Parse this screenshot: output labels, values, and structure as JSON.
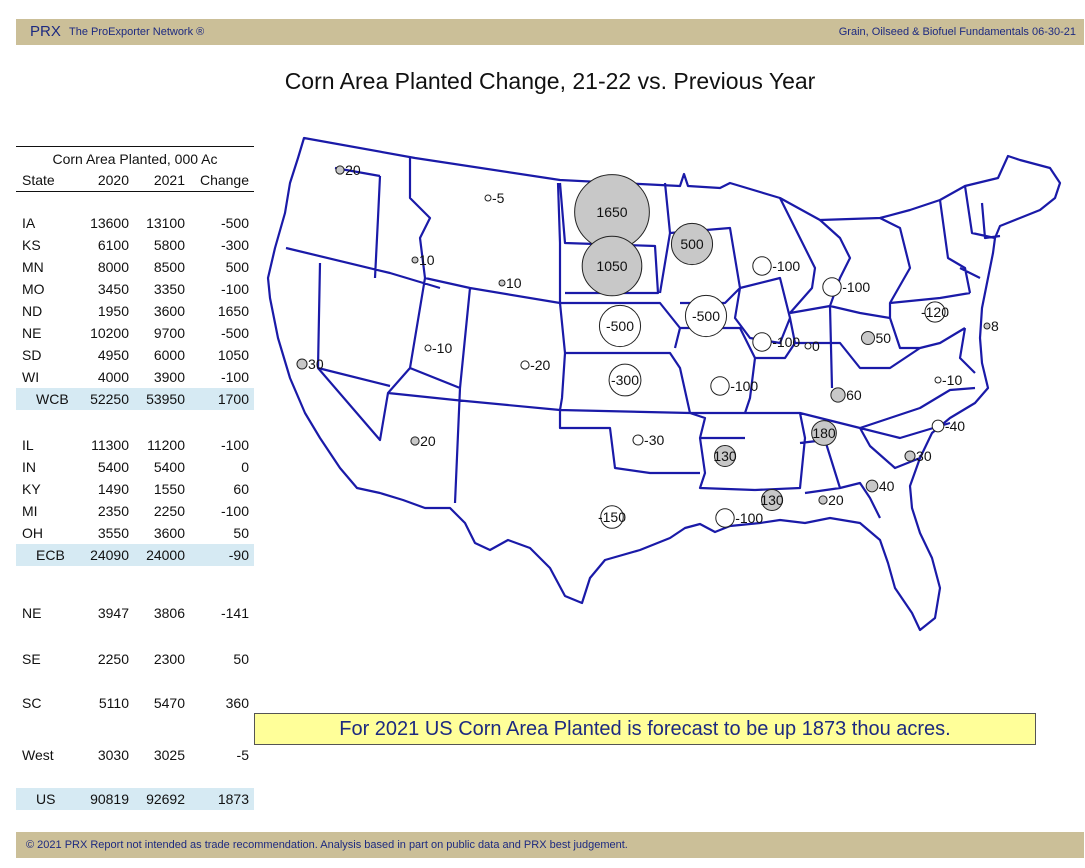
{
  "header": {
    "brand": "PRX",
    "network": "The ProExporter Network ®",
    "report": "Grain, Oilseed & Biofuel Fundamentals  06-30-21"
  },
  "title": "Corn Area Planted Change, 21-22 vs. Previous Year",
  "table": {
    "caption": "Corn Area Planted, 000 Ac",
    "headers": [
      "State",
      "2020",
      "2021",
      "Change"
    ],
    "rows": [
      [
        "IA",
        "13600",
        "13100",
        "-500"
      ],
      [
        "KS",
        "6100",
        "5800",
        "-300"
      ],
      [
        "MN",
        "8000",
        "8500",
        "500"
      ],
      [
        "MO",
        "3450",
        "3350",
        "-100"
      ],
      [
        "ND",
        "1950",
        "3600",
        "1650"
      ],
      [
        "NE",
        "10200",
        "9700",
        "-500"
      ],
      [
        "SD",
        "4950",
        "6000",
        "1050"
      ],
      [
        "WI",
        "4000",
        "3900",
        "-100"
      ],
      [
        "WCB",
        "52250",
        "53950",
        "1700"
      ],
      [
        "IL",
        "11300",
        "11200",
        "-100"
      ],
      [
        "IN",
        "5400",
        "5400",
        "0"
      ],
      [
        "KY",
        "1490",
        "1550",
        "60"
      ],
      [
        "MI",
        "2350",
        "2250",
        "-100"
      ],
      [
        "OH",
        "3550",
        "3600",
        "50"
      ],
      [
        "ECB",
        "24090",
        "24000",
        "-90"
      ],
      [
        "NE",
        "3947",
        "3806",
        "-141"
      ],
      [
        "SE",
        "2250",
        "2300",
        "50"
      ],
      [
        "SC",
        "5110",
        "5470",
        "360"
      ],
      [
        "West",
        "3030",
        "3025",
        "-5"
      ],
      [
        "US",
        "90819",
        "92692",
        "1873"
      ]
    ]
  },
  "map": {
    "bubbles": [
      {
        "state": "WA",
        "value": "20"
      },
      {
        "state": "MT",
        "value": "-5"
      },
      {
        "state": "ND",
        "value": "1650"
      },
      {
        "state": "SD",
        "value": "1050"
      },
      {
        "state": "MN",
        "value": "500"
      },
      {
        "state": "ID",
        "value": "10"
      },
      {
        "state": "WY",
        "value": "10"
      },
      {
        "state": "CA",
        "value": "30"
      },
      {
        "state": "UT",
        "value": "-10"
      },
      {
        "state": "CO",
        "value": "-20"
      },
      {
        "state": "NE",
        "value": "-500"
      },
      {
        "state": "IA",
        "value": "-500"
      },
      {
        "state": "WI",
        "value": "-100"
      },
      {
        "state": "MI",
        "value": "-100"
      },
      {
        "state": "NY",
        "value": "-120"
      },
      {
        "state": "IL",
        "value": "-100"
      },
      {
        "state": "IN",
        "value": "0"
      },
      {
        "state": "OH",
        "value": "50"
      },
      {
        "state": "KS",
        "value": "-300"
      },
      {
        "state": "MO",
        "value": "-100"
      },
      {
        "state": "KY",
        "value": "60"
      },
      {
        "state": "AZ",
        "value": "20"
      },
      {
        "state": "OK",
        "value": "-30"
      },
      {
        "state": "TN",
        "value": "180"
      },
      {
        "state": "VA",
        "value": "-10"
      },
      {
        "state": "NC",
        "value": "-40"
      },
      {
        "state": "SC",
        "value": "30"
      },
      {
        "state": "AR",
        "value": "130"
      },
      {
        "state": "MS",
        "value": "130"
      },
      {
        "state": "AL",
        "value": "20"
      },
      {
        "state": "GA",
        "value": "40"
      },
      {
        "state": "TX",
        "value": "-150"
      },
      {
        "state": "LA",
        "value": "-100"
      },
      {
        "state": "NJ",
        "value": "8"
      }
    ],
    "positive_color": "#c8c8c8",
    "negative_color": "#ffffff",
    "border_color": "#1a1aa8"
  },
  "forecast": "For 2021 US Corn Area Planted is forecast to be up 1873 thou acres.",
  "footer": "© 2021 PRX  Report not intended as trade recommendation. Analysis based in part on public data and PRX best judgement."
}
